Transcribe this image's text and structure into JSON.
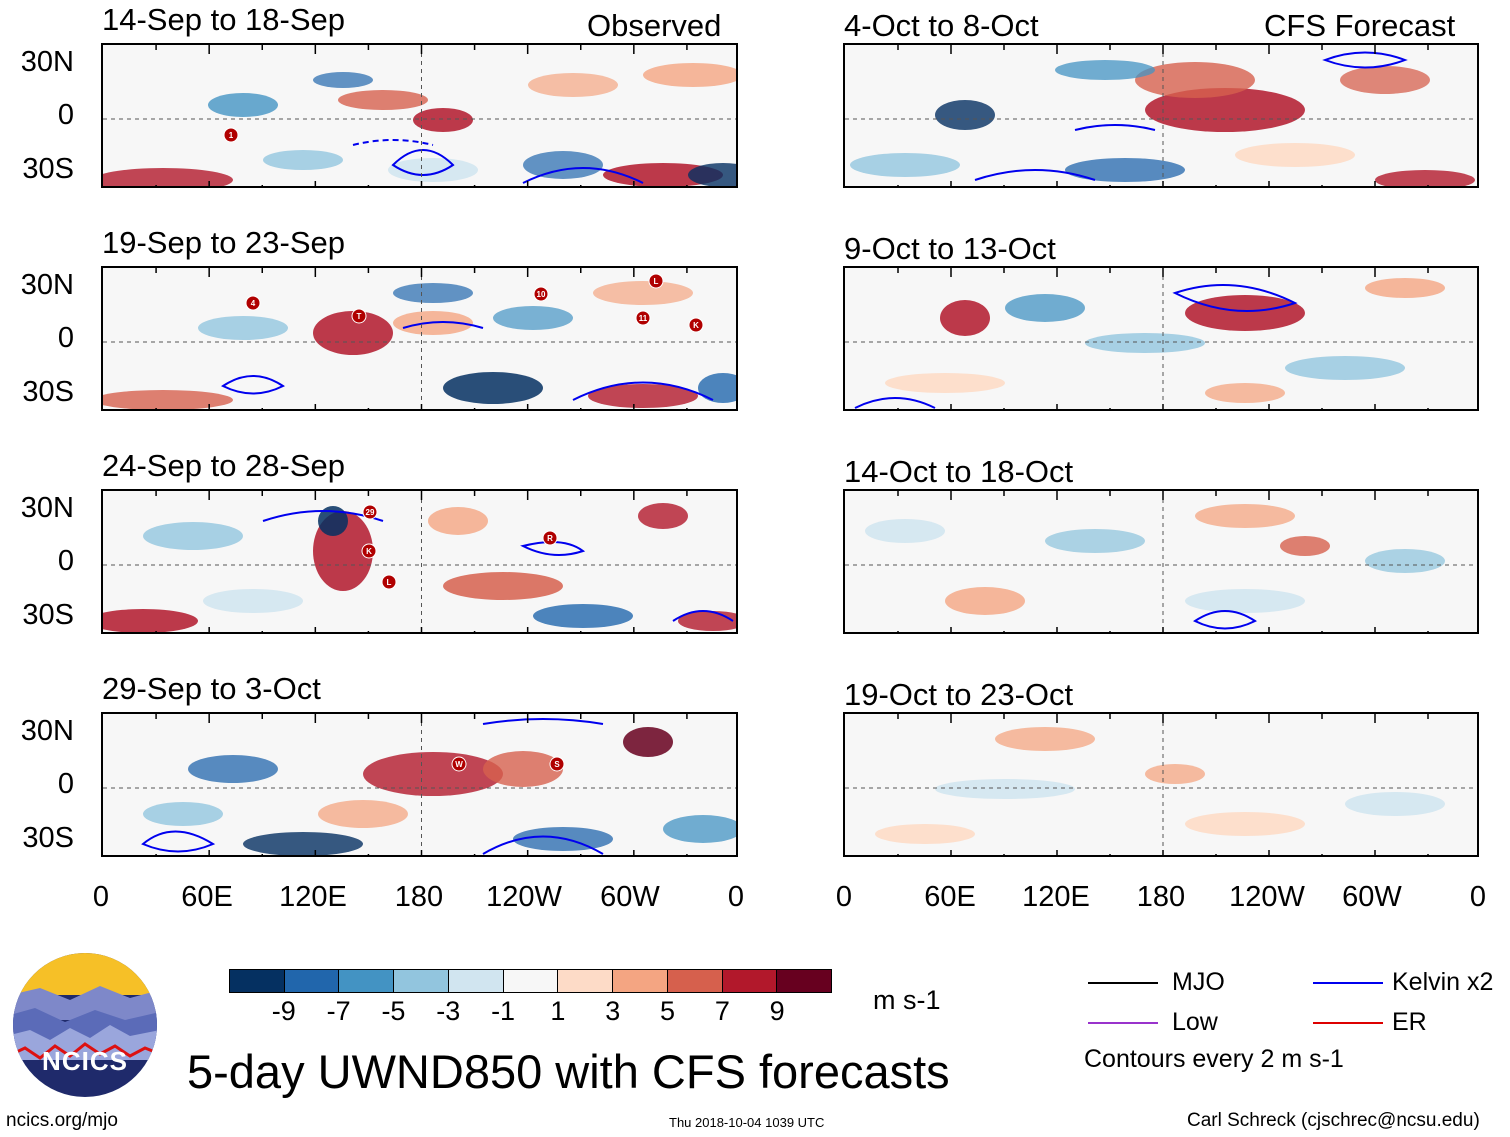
{
  "colorbar": {
    "ticks": [
      "-9",
      "-7",
      "-5",
      "-3",
      "-1",
      "1",
      "3",
      "5",
      "7",
      "9"
    ],
    "colors": [
      "#053061",
      "#2166ac",
      "#4393c3",
      "#92c5de",
      "#d1e5f0",
      "#f7f7f7",
      "#fddbc7",
      "#f4a582",
      "#d6604d",
      "#b2182b",
      "#67001f"
    ],
    "units": "m s-1"
  },
  "title": "5-day UWND850 with CFS forecasts",
  "legend": {
    "mjo": "MJO",
    "kelvin": "Kelvin x2",
    "low": "Low",
    "er": "ER",
    "mjo_color": "#000000",
    "kelvin_color": "#0000ee",
    "low_color": "#9933cc",
    "er_color": "#dd0000",
    "contour_note": "Contours every 2 m s-1"
  },
  "logo": {
    "text": "NCICS"
  },
  "footer": {
    "url": "ncics.org/mjo",
    "timestamp": "Thu 2018-10-04 1039 UTC",
    "credit": "Carl Schreck (cjschrec@ncsu.edu)"
  },
  "lat_labels": [
    "30N",
    "0",
    "30S"
  ],
  "lon_labels": [
    "0",
    "60E",
    "120E",
    "180",
    "120W",
    "60W",
    "0"
  ],
  "panels_left": [
    {
      "title": "14-Sep to 18-Sep",
      "tag": "Observed",
      "storms": [
        "1"
      ]
    },
    {
      "title": "19-Sep to 23-Sep",
      "tag": "",
      "storms": [
        "4",
        "T",
        "10",
        "L",
        "11",
        "K"
      ]
    },
    {
      "title": "24-Sep to 28-Sep",
      "tag": "",
      "storms": [
        "29",
        "K",
        "R",
        "L"
      ]
    },
    {
      "title": "29-Sep to 3-Oct",
      "tag": "",
      "storms": [
        "W",
        "S"
      ]
    }
  ],
  "panels_right": [
    {
      "title": "4-Oct to 8-Oct",
      "tag": "CFS Forecast"
    },
    {
      "title": "9-Oct to 13-Oct",
      "tag": ""
    },
    {
      "title": "14-Oct to 18-Oct",
      "tag": ""
    },
    {
      "title": "19-Oct to 23-Oct",
      "tag": ""
    }
  ]
}
